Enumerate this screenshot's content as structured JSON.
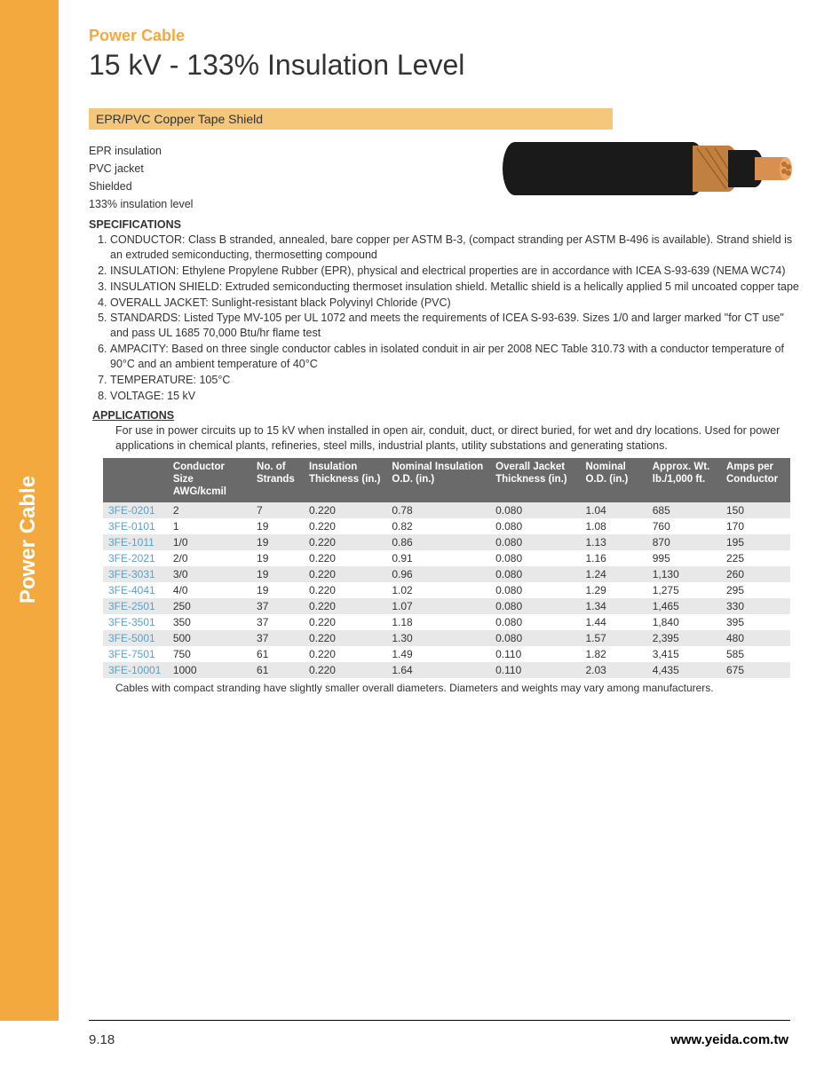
{
  "side_label": "Power Cable",
  "category": "Power Cable",
  "title": "15 kV - 133% Insulation Level",
  "subtitle": "EPR/PVC Copper Tape Shield",
  "features": [
    "EPR insulation",
    "PVC jacket",
    "Shielded",
    "133% insulation level"
  ],
  "spec_heading": "SPECIFICATIONS",
  "specs": [
    "CONDUCTOR: Class B stranded, annealed, bare copper per ASTM B-3, (compact stranding per ASTM B-496 is available). Strand shield is an extruded semiconducting, thermosetting compound",
    "INSULATION: Ethylene Propylene Rubber (EPR), physical and electrical properties are in accordance with ICEA S-93-639 (NEMA WC74)",
    "INSULATION SHIELD: Extruded semiconducting thermoset insulation shield. Metallic shield is a helically applied 5 mil uncoated copper tape",
    "OVERALL JACKET: Sunlight-resistant black Polyvinyl Chloride (PVC)",
    "STANDARDS: Listed Type MV-105 per UL 1072 and meets the requirements of ICEA S-93-639. Sizes 1/0 and larger marked \"for CT use\" and pass UL 1685 70,000 Btu/hr flame test",
    "AMPACITY: Based on three single conductor cables in isolated conduit in air per 2008 NEC Table 310.73 with a conductor temperature of 90°C and an ambient temperature of 40°C",
    "TEMPERATURE: 105°C",
    "VOLTAGE: 15 kV"
  ],
  "apps_heading": "APPLICATIONS",
  "apps_text": "For use in power circuits up to 15 kV when installed in open air, conduit, duct, or direct buried, for wet and dry locations. Used for power applications in chemical plants, refineries, steel mills, industrial plants, utility substations and generating stations.",
  "table": {
    "columns": [
      "",
      "Conductor Size AWG/kcmil",
      "No. of Strands",
      "Insulation Thickness (in.)",
      "Nominal Insulation O.D. (in.)",
      "Overall Jacket Thickness (in.)",
      "Nominal O.D. (in.)",
      "Approx. Wt. lb./1,000 ft.",
      "Amps per Conductor"
    ],
    "col_widths": [
      "80px",
      "100px",
      "60px",
      "100px",
      "130px",
      "110px",
      "80px",
      "90px",
      "80px"
    ],
    "rows": [
      [
        "3FE-0201",
        "2",
        "7",
        "0.220",
        "0.78",
        "0.080",
        "1.04",
        "685",
        "150"
      ],
      [
        "3FE-0101",
        "1",
        "19",
        "0.220",
        "0.82",
        "0.080",
        "1.08",
        "760",
        "170"
      ],
      [
        "3FE-1011",
        "1/0",
        "19",
        "0.220",
        "0.86",
        "0.080",
        "1.13",
        "870",
        "195"
      ],
      [
        "3FE-2021",
        "2/0",
        "19",
        "0.220",
        "0.91",
        "0.080",
        "1.16",
        "995",
        "225"
      ],
      [
        "3FE-3031",
        "3/0",
        "19",
        "0.220",
        "0.96",
        "0.080",
        "1.24",
        "1,130",
        "260"
      ],
      [
        "3FE-4041",
        "4/0",
        "19",
        "0.220",
        "1.02",
        "0.080",
        "1.29",
        "1,275",
        "295"
      ],
      [
        "3FE-2501",
        "250",
        "37",
        "0.220",
        "1.07",
        "0.080",
        "1.34",
        "1,465",
        "330"
      ],
      [
        "3FE-3501",
        "350",
        "37",
        "0.220",
        "1.18",
        "0.080",
        "1.44",
        "1,840",
        "395"
      ],
      [
        "3FE-5001",
        "500",
        "37",
        "0.220",
        "1.30",
        "0.080",
        "1.57",
        "2,395",
        "480"
      ],
      [
        "3FE-7501",
        "750",
        "61",
        "0.220",
        "1.49",
        "0.110",
        "1.82",
        "3,415",
        "585"
      ],
      [
        "3FE-10001",
        "1000",
        "61",
        "0.220",
        "1.64",
        "0.110",
        "2.03",
        "4,435",
        "675"
      ]
    ],
    "header_bg": "#6a6a6a",
    "header_fg": "#ffffff",
    "row_odd_bg": "#e8e8e8",
    "row_even_bg": "#ffffff",
    "first_col_color": "#5aa0c8"
  },
  "table_note": "Cables with compact stranding have slightly smaller overall diameters.  Diameters and weights may vary among manufacturers.",
  "page_num": "9.18",
  "url": "www.yeida.com.tw",
  "colors": {
    "accent": "#f4a93f",
    "subtitle_bg": "#f4c77a"
  },
  "cable_image": {
    "jacket_color": "#1a1a1a",
    "copper_band": "#c08040",
    "copper_core": "#d89050"
  }
}
